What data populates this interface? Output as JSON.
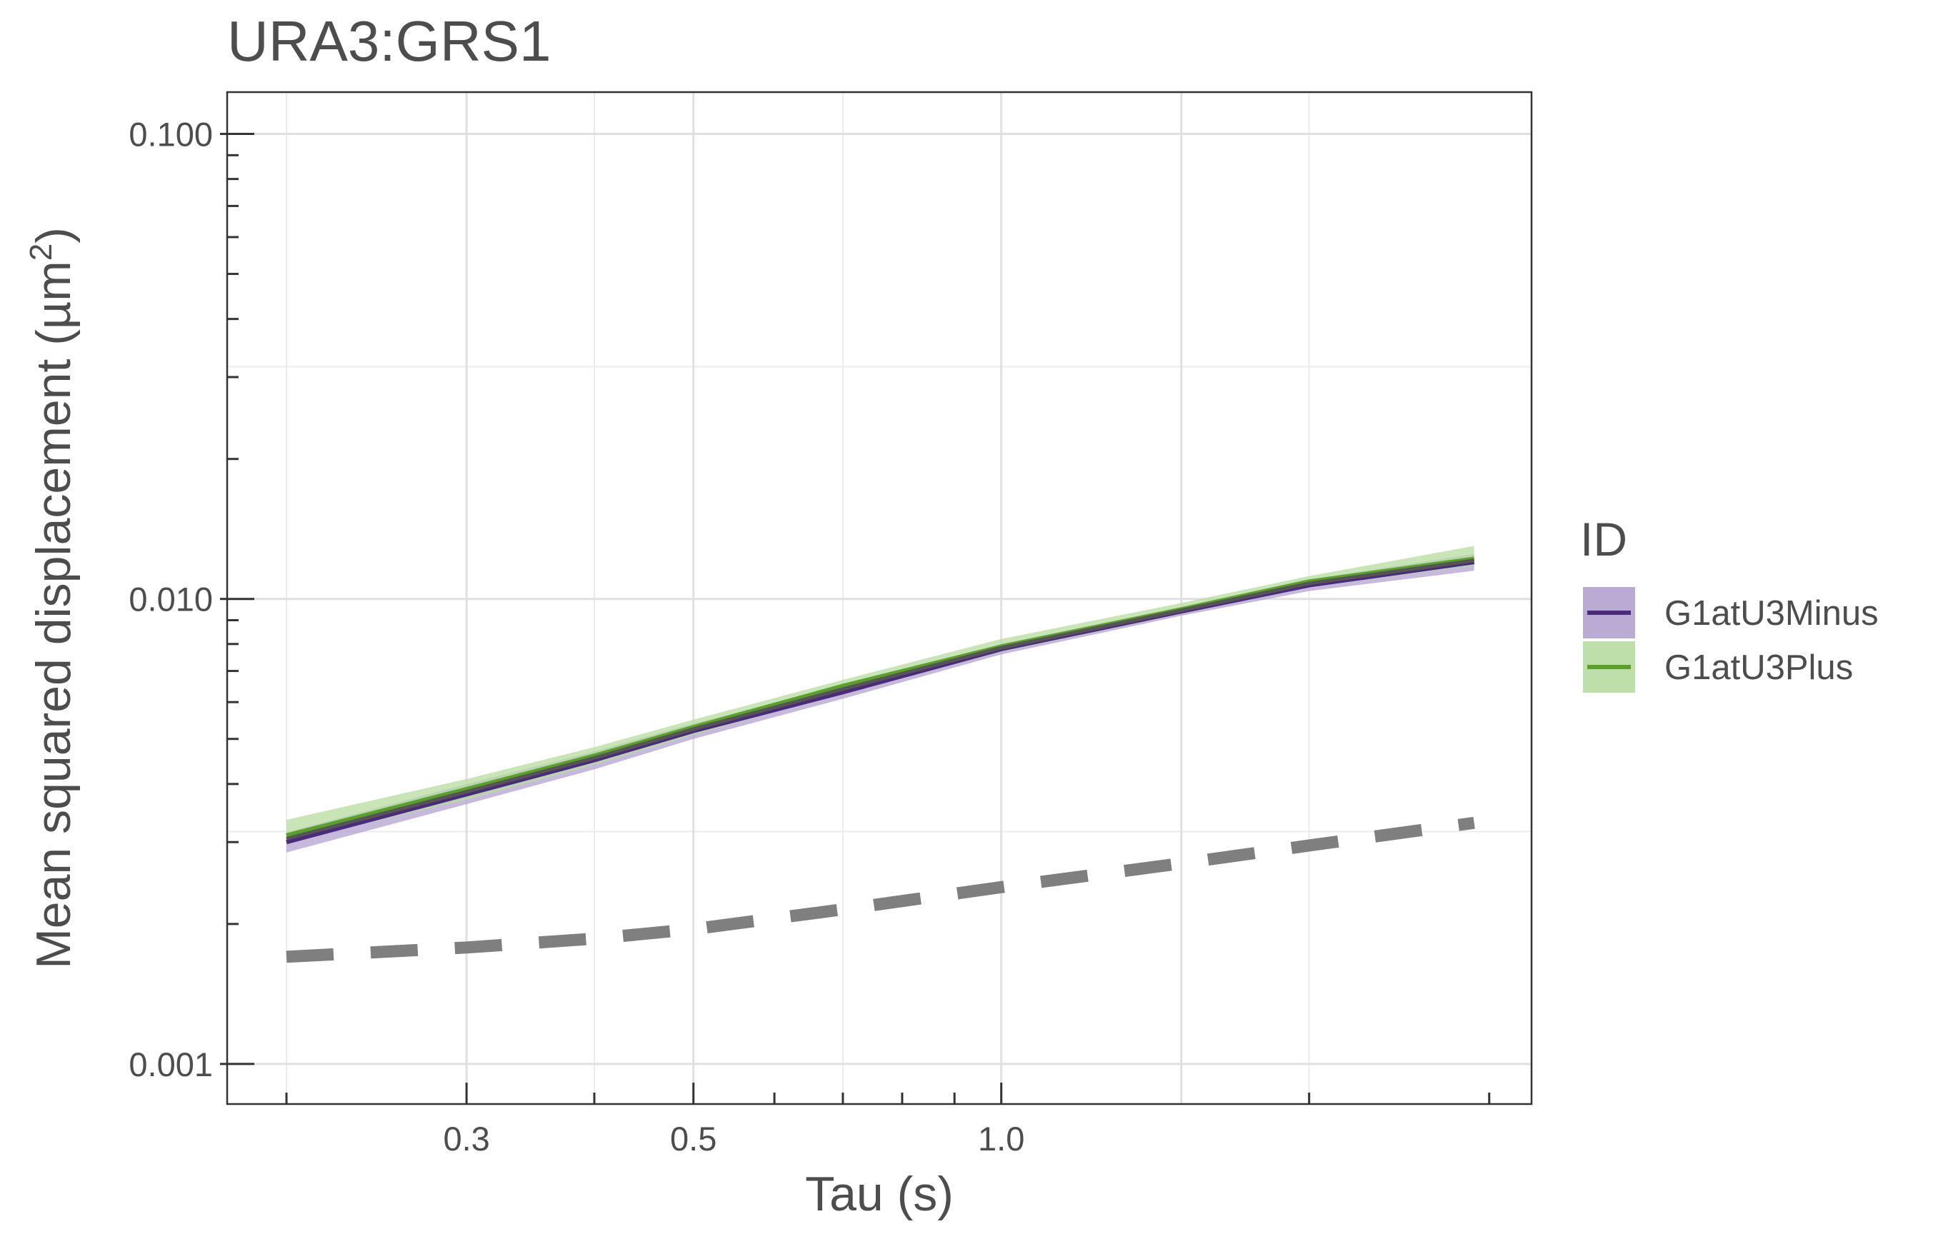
{
  "chart_data": {
    "type": "line",
    "title": "URA3:GRS1",
    "xlabel": "Tau (s)",
    "ylabel": "Mean squared displacement (µm²)",
    "ylabel_parts": {
      "main": "Mean squared displacement (µm",
      "sup": "2",
      "tail": ")"
    },
    "x_scale": "log",
    "y_scale": "log",
    "xlim": [
      0.175,
      3.3
    ],
    "ylim": [
      0.00082,
      0.123
    ],
    "x_ticks": [
      {
        "value": 0.3,
        "label": "0.3"
      },
      {
        "value": 0.5,
        "label": "0.5"
      },
      {
        "value": 1.0,
        "label": "1.0"
      }
    ],
    "x_minor_ticks": [
      0.2,
      0.4,
      0.6,
      0.7,
      0.8,
      0.9,
      2.0,
      3.0
    ],
    "y_ticks": [
      {
        "value": 0.001,
        "label": "0.001"
      },
      {
        "value": 0.01,
        "label": "0.010"
      },
      {
        "value": 0.1,
        "label": "0.100"
      }
    ],
    "y_minor_ticks": [
      0.002,
      0.003,
      0.004,
      0.005,
      0.006,
      0.007,
      0.008,
      0.009,
      0.02,
      0.03,
      0.04,
      0.05,
      0.06,
      0.07,
      0.08,
      0.09
    ],
    "grid": true,
    "legend": {
      "title": "ID",
      "position": "right"
    },
    "x": [
      0.2,
      0.3,
      0.4,
      0.5,
      0.7,
      1.0,
      1.5,
      2.0,
      2.9
    ],
    "series": [
      {
        "name": "G1atU3Minus",
        "color": "#4a2a7a",
        "ribbon_color": "#b3a2cf",
        "values": [
          0.003,
          0.0038,
          0.0045,
          0.0052,
          0.0063,
          0.0078,
          0.0094,
          0.0107,
          0.012
        ],
        "lower": [
          0.00285,
          0.00362,
          0.0043,
          0.005,
          0.0061,
          0.0076,
          0.0092,
          0.0104,
          0.0115
        ],
        "upper": [
          0.00315,
          0.004,
          0.0047,
          0.0054,
          0.0065,
          0.008,
          0.0096,
          0.011,
          0.0125
        ]
      },
      {
        "name": "G1atU3Plus",
        "color": "#5aa02c",
        "ribbon_color": "#b7dca0",
        "values": [
          0.0031,
          0.0039,
          0.0046,
          0.0053,
          0.0065,
          0.0079,
          0.0095,
          0.0109,
          0.0122
        ],
        "lower": [
          0.003,
          0.0037,
          0.0044,
          0.0051,
          0.0063,
          0.0077,
          0.0093,
          0.0106,
          0.0118
        ],
        "upper": [
          0.00335,
          0.0041,
          0.0048,
          0.0055,
          0.0067,
          0.0082,
          0.0098,
          0.0112,
          0.013
        ]
      }
    ],
    "overall_line": {
      "color": "#555555",
      "values": [
        0.00305,
        0.00385,
        0.00455,
        0.00525,
        0.0064,
        0.00785,
        0.00945,
        0.0108,
        0.0121
      ]
    },
    "reference_line": {
      "style": "dashed",
      "color": "#7f7f7f",
      "x": [
        0.2,
        0.3,
        0.4,
        0.5,
        0.7,
        1.0,
        1.5,
        2.0,
        2.9
      ],
      "values": [
        0.0017,
        0.00178,
        0.00186,
        0.00195,
        0.00215,
        0.0024,
        0.0027,
        0.00295,
        0.0033
      ]
    }
  }
}
